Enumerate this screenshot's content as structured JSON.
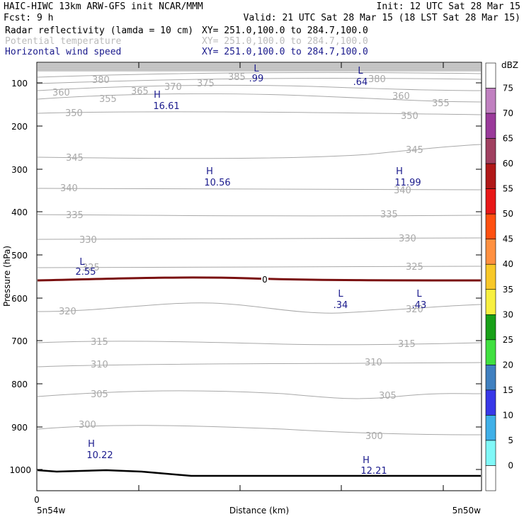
{
  "header": {
    "line1_left": "HAIC-HIWC 13km ARW-GFS init   NCAR/MMM",
    "line1_right": "Init: 12 UTC Sat 28 Mar 15",
    "line2_left": "Fcst:    9 h",
    "line2_right": "Valid: 21 UTC Sat 28 Mar 15 (18 LST Sat 28 Mar 15)",
    "fields": [
      {
        "name": "Radar reflectivity (lamda = 10 cm)",
        "xy": "XY= 251.0,100.0 to 284.7,100.0",
        "color": "#000000"
      },
      {
        "name": "Potential temperature",
        "xy": "XY= 251.0,100.0 to 284.7,100.0",
        "color": "#bbbbbb"
      },
      {
        "name": "Horizontal wind speed",
        "xy": "XY= 251.0,100.0 to 284.7,100.0",
        "color": "#1a1a8c"
      }
    ]
  },
  "chart_data": {
    "type": "cross-section",
    "ylabel": "Pressure (hPa)",
    "xlabel": "Distance (km)",
    "y_ticks": [
      "100",
      "200",
      "300",
      "400",
      "500",
      "600",
      "700",
      "800",
      "900",
      "1000"
    ],
    "x_ticks": [
      "0"
    ],
    "x_left_label": "5n54w",
    "x_right_label": "5n50w",
    "colorbar": {
      "unit": "dBZ",
      "levels": [
        "75",
        "70",
        "65",
        "60",
        "55",
        "50",
        "45",
        "40",
        "35",
        "30",
        "25",
        "20",
        "15",
        "10",
        "5",
        "0"
      ],
      "colors": [
        "#ffffff",
        "#c080c0",
        "#9a3a9a",
        "#a04060",
        "#b01818",
        "#e81818",
        "#ff5010",
        "#ff9040",
        "#f8c828",
        "#f8f040",
        "#18a018",
        "#40e040",
        "#4080c0",
        "#3838e8",
        "#40b0e8",
        "#80f8f8",
        "#ffffff"
      ]
    },
    "theta_labels": [
      "380",
      "385",
      "380",
      "360",
      "365",
      "370",
      "375",
      "355",
      "360",
      "355",
      "350",
      "350",
      "345",
      "345",
      "340",
      "340",
      "335",
      "335",
      "330",
      "330",
      "325",
      "325",
      "320",
      "320",
      "315",
      "315",
      "310",
      "310",
      "305",
      "305",
      "300",
      "300"
    ],
    "reflectivity_label": "0",
    "wind_extrema": [
      {
        "type": "L",
        "value": ".99"
      },
      {
        "type": "L",
        "value": ".64"
      },
      {
        "type": "H",
        "value": "16.61"
      },
      {
        "type": "H",
        "value": "10.56"
      },
      {
        "type": "H",
        "value": "11.99"
      },
      {
        "type": "L",
        "value": "2.55"
      },
      {
        "type": "L",
        "value": ".34"
      },
      {
        "type": "L",
        "value": ".43"
      },
      {
        "type": "H",
        "value": "10.22"
      },
      {
        "type": "H",
        "value": "12.21"
      }
    ]
  }
}
